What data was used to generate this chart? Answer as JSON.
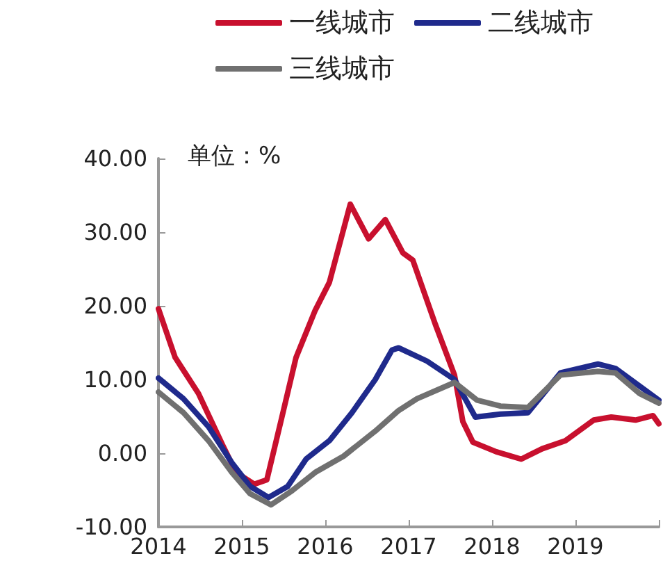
{
  "chart_data": {
    "type": "line",
    "annotations": [
      "单位：%"
    ],
    "legend": "top",
    "grid": false,
    "marker": "none",
    "line_style": "solid",
    "xlim": [
      2014,
      2020
    ],
    "xticks": [
      2014,
      2015,
      2016,
      2017,
      2018,
      2019,
      {
        "value": 2020,
        "label": null
      }
    ],
    "ylim": [
      -10,
      40
    ],
    "yticks": [
      {
        "value": -10,
        "label": "-10.00"
      },
      {
        "value": 0,
        "label": "0.00"
      },
      {
        "value": 10,
        "label": "10.00"
      },
      {
        "value": 20,
        "label": "20.00"
      },
      {
        "value": 30,
        "label": "30.00"
      },
      {
        "value": 40,
        "label": "40.00"
      }
    ],
    "series": [
      {
        "name": "一线城市",
        "color": "#c8102e",
        "x": [
          2014.0,
          2014.2,
          2014.48,
          2014.77,
          2014.93,
          2015.15,
          2015.3,
          2015.48,
          2015.65,
          2015.88,
          2016.05,
          2016.3,
          2016.52,
          2016.72,
          2016.93,
          2017.05,
          2017.32,
          2017.55,
          2017.65,
          2017.77,
          2018.05,
          2018.35,
          2018.6,
          2018.88,
          2019.22,
          2019.43,
          2019.72,
          2019.93,
          2020.0
        ],
        "values": [
          19.6,
          13,
          8.1,
          1.1,
          -2.6,
          -4.2,
          -3.6,
          4.9,
          13,
          19.4,
          23.2,
          33.8,
          29.1,
          31.7,
          27.2,
          26.2,
          17.5,
          10.6,
          4.3,
          1.5,
          0.2,
          -0.8,
          0.6,
          1.7,
          4.5,
          4.9,
          4.5,
          5.1,
          4.0
        ]
      },
      {
        "name": "二线城市",
        "color": "#1f2a8c",
        "x": [
          2014.0,
          2014.3,
          2014.6,
          2014.88,
          2015.1,
          2015.32,
          2015.55,
          2015.77,
          2016.05,
          2016.32,
          2016.6,
          2016.8,
          2016.88,
          2017.22,
          2017.55,
          2017.8,
          2018.1,
          2018.43,
          2018.82,
          2019.27,
          2019.48,
          2019.77,
          2020.0
        ],
        "values": [
          10.2,
          7.4,
          3.6,
          -1.3,
          -4.5,
          -6,
          -4.5,
          -0.8,
          1.7,
          5.5,
          10,
          14,
          14.3,
          12.5,
          10,
          4.9,
          5.3,
          5.5,
          10.9,
          12.1,
          11.5,
          9.1,
          7.2
        ]
      },
      {
        "name": "三线城市",
        "color": "#707070",
        "x": [
          2014.0,
          2014.3,
          2014.6,
          2014.88,
          2015.1,
          2015.35,
          2015.6,
          2015.88,
          2016.22,
          2016.6,
          2016.88,
          2017.1,
          2017.55,
          2017.82,
          2018.1,
          2018.43,
          2018.82,
          2019.27,
          2019.48,
          2019.77,
          2020.0
        ],
        "values": [
          8.3,
          5.5,
          1.7,
          -2.6,
          -5.5,
          -7,
          -5.1,
          -2.6,
          -0.4,
          3,
          5.8,
          7.4,
          9.6,
          7.2,
          6.4,
          6.2,
          10.6,
          11.1,
          10.9,
          8.1,
          6.8
        ]
      }
    ]
  }
}
